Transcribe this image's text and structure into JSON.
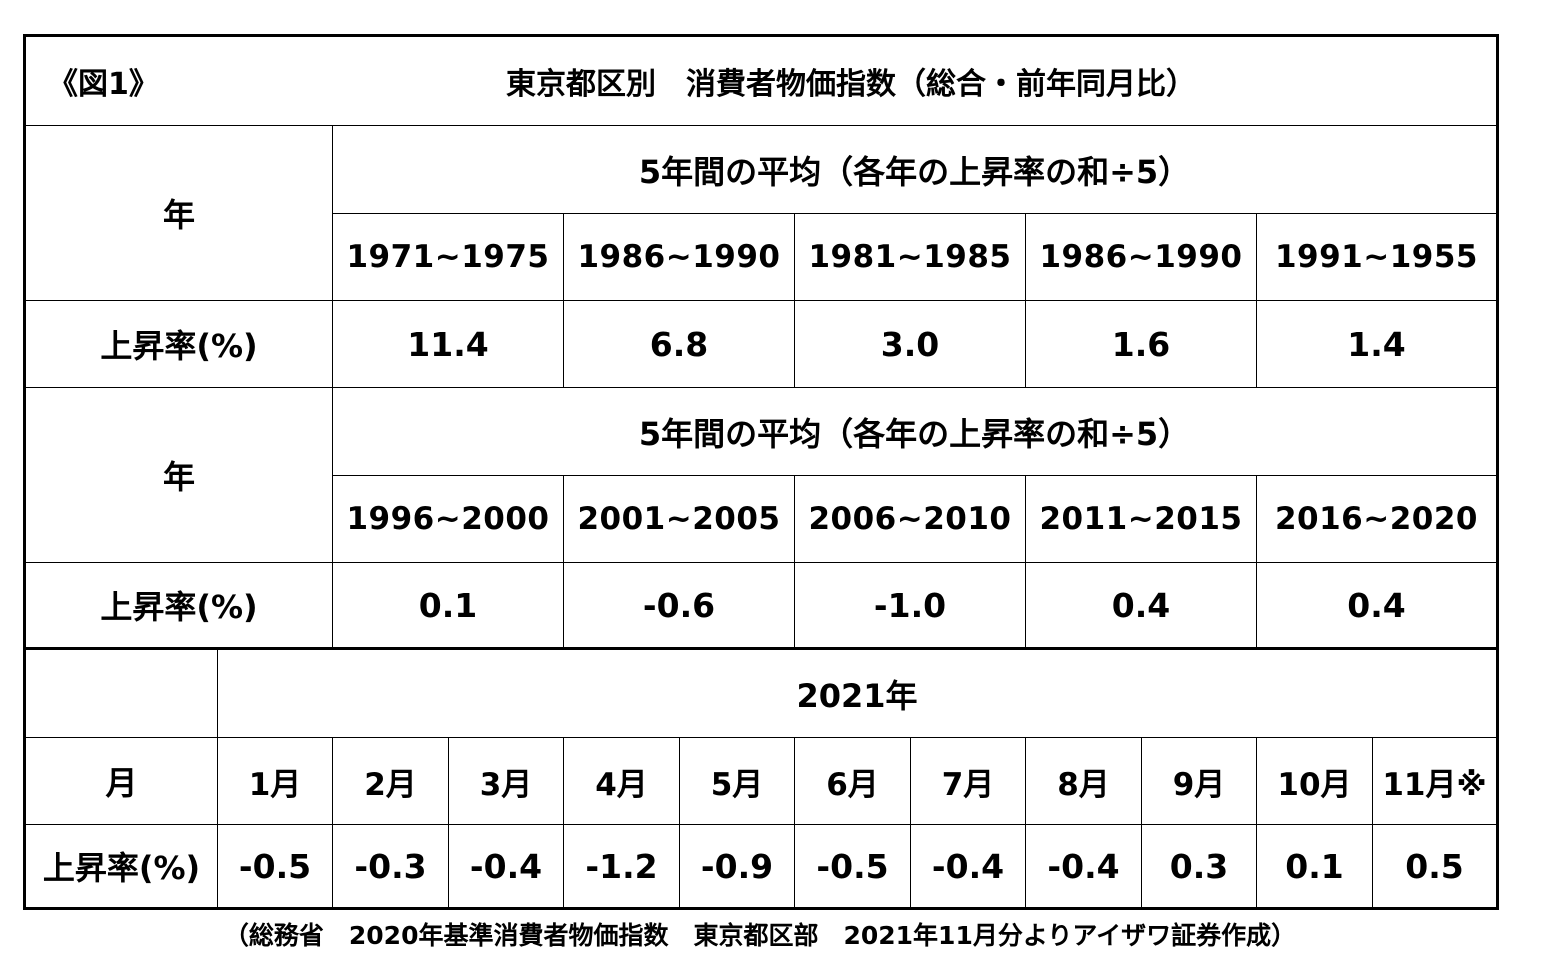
{
  "header": {
    "figure_label": "《図1》",
    "title": "東京都区別　消費者物価指数（総合・前年同月比）"
  },
  "section1": {
    "year_label": "年",
    "group_header": "5年間の平均（各年の上昇率の和÷5）",
    "periods": [
      "1971~1975",
      "1986~1990",
      "1981~1985",
      "1986~1990",
      "1991~1955"
    ],
    "rate_label": "上昇率(%)",
    "rates": [
      "11.4",
      "6.8",
      "3.0",
      "1.6",
      "1.4"
    ]
  },
  "section2": {
    "year_label": "年",
    "group_header": "5年間の平均（各年の上昇率の和÷5）",
    "periods": [
      "1996~2000",
      "2001~2005",
      "2006~2010",
      "2011~2015",
      "2016~2020"
    ],
    "rate_label": "上昇率(%)",
    "rates": [
      "0.1",
      "-0.6",
      "-1.0",
      "0.4",
      "0.4"
    ]
  },
  "section3": {
    "year_header": "2021年",
    "month_label": "月",
    "months": [
      "1月",
      "2月",
      "3月",
      "4月",
      "5月",
      "6月",
      "7月",
      "8月",
      "9月",
      "10月",
      "11月※"
    ],
    "rate_label": "上昇率(%)",
    "rates": [
      "-0.5",
      "-0.3",
      "-0.4",
      "-1.2",
      "-0.9",
      "-0.5",
      "-0.4",
      "-0.4",
      "0.3",
      "0.1",
      "0.5"
    ]
  },
  "caption": "（総務省　2020年基準消費者物価指数　東京都区部　2021年11月分よりアイザワ証券作成）"
}
